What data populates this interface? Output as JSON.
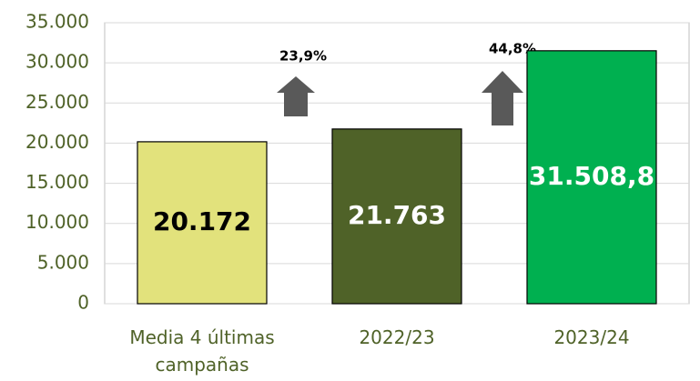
{
  "chart_data": {
    "type": "bar",
    "categories": [
      "Media 4 últimas campañas",
      "2022/23",
      "2023/24"
    ],
    "values": [
      20172,
      21763,
      31508.8
    ],
    "value_labels": [
      "20.172",
      "21.763",
      "31.508,8"
    ],
    "colors": [
      "#e2e27c",
      "#4f6228",
      "#00b050"
    ],
    "label_colors": [
      "#000000",
      "#ffffff",
      "#ffffff"
    ],
    "ylim": [
      0,
      35000
    ],
    "yticks": [
      {
        "value": 0,
        "label": "0"
      },
      {
        "value": 5000,
        "label": "5.000"
      },
      {
        "value": 10000,
        "label": "10.000"
      },
      {
        "value": 15000,
        "label": "15.000"
      },
      {
        "value": 20000,
        "label": "20.000"
      },
      {
        "value": 25000,
        "label": "25.000"
      },
      {
        "value": 30000,
        "label": "30.000"
      },
      {
        "value": 35000,
        "label": "35.000"
      }
    ],
    "grid": true,
    "annotations": [
      "23,9%",
      "44,8%"
    ]
  }
}
